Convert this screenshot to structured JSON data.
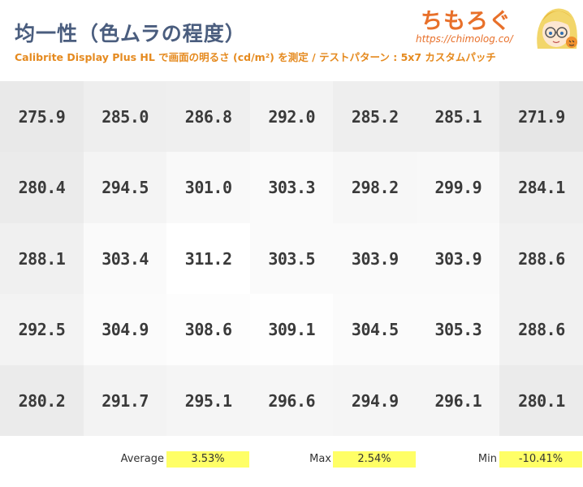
{
  "header": {
    "title": "均一性（色ムラの程度）",
    "subtitle": "Calibrite Display Plus HL で画面の明るさ (cd/m²) を測定 / テストパターン : 5x7 カスタムパッチ",
    "logo_text": "ちもろぐ",
    "logo_url": "https://chimolog.co/"
  },
  "chart_data": {
    "type": "heatmap",
    "title": "均一性（色ムラの程度）",
    "unit": "cd/m²",
    "rows": 5,
    "cols": 7,
    "values": [
      [
        275.9,
        285.0,
        286.8,
        292.0,
        285.2,
        285.1,
        271.9
      ],
      [
        280.4,
        294.5,
        301.0,
        303.3,
        298.2,
        299.9,
        284.1
      ],
      [
        288.1,
        303.4,
        311.2,
        303.5,
        303.9,
        303.9,
        288.6
      ],
      [
        292.5,
        304.9,
        308.6,
        309.1,
        304.5,
        305.3,
        288.6
      ],
      [
        280.2,
        291.7,
        295.1,
        296.6,
        294.9,
        296.1,
        280.1
      ]
    ],
    "labels": [
      [
        "275.9",
        "285.0",
        "286.8",
        "292.0",
        "285.2",
        "285.1",
        "271.9"
      ],
      [
        "280.4",
        "294.5",
        "301.0",
        "303.3",
        "298.2",
        "299.9",
        "284.1"
      ],
      [
        "288.1",
        "303.4",
        "311.2",
        "303.5",
        "303.9",
        "303.9",
        "288.6"
      ],
      [
        "292.5",
        "304.9",
        "308.6",
        "309.1",
        "304.5",
        "305.3",
        "288.6"
      ],
      [
        "280.2",
        "291.7",
        "295.1",
        "296.6",
        "294.9",
        "296.1",
        "280.1"
      ]
    ],
    "color_low": "#e6e6e6",
    "color_high": "#ffffff",
    "stats": [
      {
        "label": "Average",
        "value": "3.53%"
      },
      {
        "label": "Max",
        "value": "2.54%"
      },
      {
        "label": "Min",
        "value": "-10.41%"
      }
    ]
  },
  "colors": {
    "title": "#4a5d7e",
    "subtitle": "#e58a1f",
    "highlight": "#ffff66",
    "cell_text": "#3a3a3a"
  }
}
